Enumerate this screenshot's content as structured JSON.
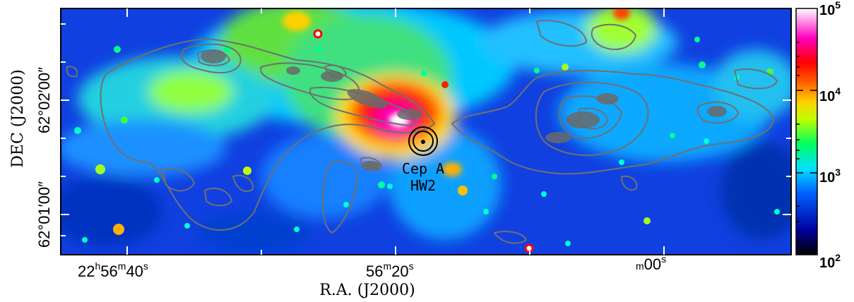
{
  "figure": {
    "xlabel": "R.A. (J2000)",
    "ylabel": "DEC (J2000)",
    "x_ticks": [
      {
        "main": "22",
        "h": "h",
        "m_val": "56",
        "m": "m",
        "s_val": "40",
        "s": "s"
      },
      {
        "main": "",
        "h": "",
        "m_val": "56",
        "m": "m",
        "s_val": "20",
        "s": "s"
      },
      {
        "main": "",
        "h": "",
        "m_val": "",
        "m": "m",
        "s_val": "00",
        "s": "s"
      }
    ],
    "x_tick_strings": [
      "22h56m40s",
      "56m20s",
      "56m00s"
    ],
    "y_tick_strings": [
      "62°02′00″",
      "62°01′00″"
    ],
    "colorbar": {
      "scale": "log",
      "range": [
        100,
        100000
      ],
      "tick_labels": [
        {
          "base": "10",
          "exp": "5"
        },
        {
          "base": "10",
          "exp": "4"
        },
        {
          "base": "10",
          "exp": "3"
        },
        {
          "base": "10",
          "exp": "2"
        }
      ],
      "colormap": [
        "#000000",
        "#0000ff",
        "#00ffff",
        "#00ff00",
        "#ffff00",
        "#ff8000",
        "#ff0000",
        "#ff00ff",
        "#ffffff"
      ]
    },
    "source_label_line1": "Cep A",
    "source_label_line2": "HW2",
    "contour_color": "#707070"
  }
}
